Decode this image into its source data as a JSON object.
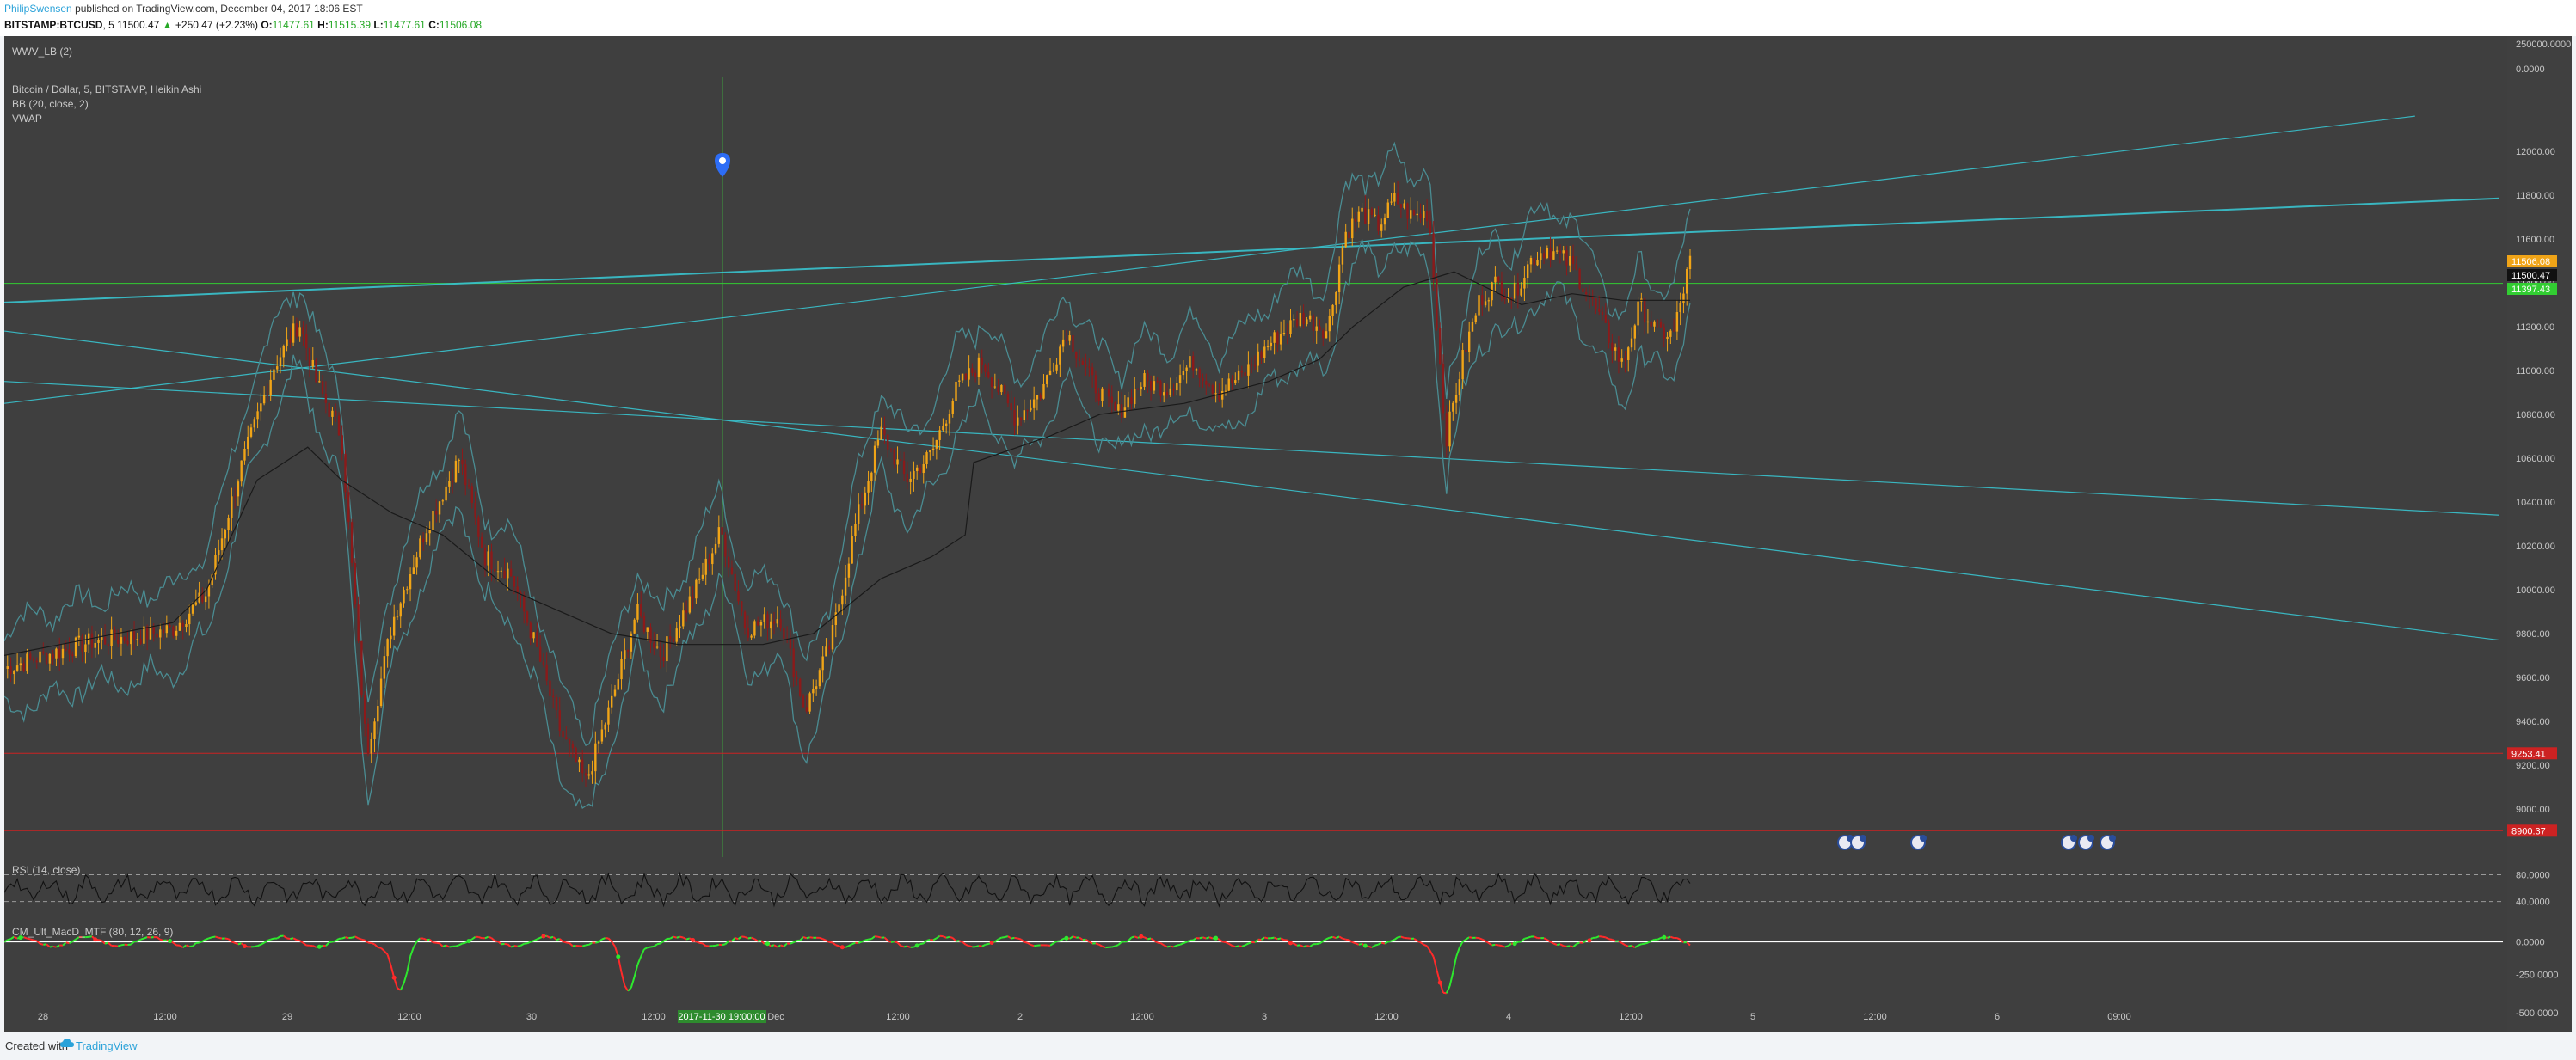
{
  "header": {
    "author": "PhilipSwensen",
    "published": "published on TradingView.com, December 04, 2017 18:06 EST",
    "symbol": "BITSTAMP:BTCUSD",
    "interval": "5",
    "last": "11500.47",
    "change_arrow": "▲",
    "change": "+250.47 (+2.23%)",
    "o_label": "O:",
    "o_value": "11477.61",
    "h_label": "H:",
    "h_value": "11515.39",
    "l_label": "L:",
    "l_value": "11477.61",
    "c_label": "C:",
    "c_value": "11506.08"
  },
  "footer": {
    "created_with": "Created with",
    "brand": "TradingView",
    "brand_icon": "tradingview-cloud-icon"
  },
  "colors": {
    "panel_bg": "#3f3f3f",
    "candle_up": "#f0a417",
    "candle_down": "#8b1a1a",
    "bands": "#4a8c92",
    "vwap": "#1a1a1a",
    "trendline": "#39c3cf",
    "hline_green": "#32cd32",
    "hline_red": "#cc2222"
  },
  "chart_data": [
    {
      "type": "candlestick",
      "legend": [
        "WWV_LB (2)",
        "Bitcoin / Dollar, 5, BITSTAMP, Heikin Ashi",
        "BB (20, close, 2)",
        "VWAP"
      ],
      "x_ticks": [
        "28",
        "12:00",
        "29",
        "12:00",
        "30",
        "12:00",
        "Dec",
        "12:00",
        "2",
        "12:00",
        "3",
        "12:00",
        "4",
        "12:00",
        "5",
        "12:00",
        "6",
        "09:00"
      ],
      "crosshair_date_label": "2017-11-30 19:00:00",
      "y_ticks": [
        9000,
        9200,
        9400,
        9600,
        9800,
        10000,
        10200,
        10400,
        10600,
        10800,
        11000,
        11200,
        11400,
        11600,
        11800,
        12000
      ],
      "y_tick_labels": [
        "9000.00",
        "9200.00",
        "9400.00",
        "9600.00",
        "9800.00",
        "10000.00",
        "10200.00",
        "10400.00",
        "10600.00",
        "10800.00",
        "11000.00",
        "11200.00",
        "11400.00",
        "11600.00",
        "11800.00",
        "12000.00"
      ],
      "ylim": [
        8780,
        12290
      ],
      "volume_axis_labels": [
        "250000.0000",
        "0.0000"
      ],
      "price_markers": [
        {
          "label": "11506.08",
          "value": 11506.08,
          "color": "#f0a417"
        },
        {
          "label": "11500.47",
          "value": 11500.47,
          "color": "#111111"
        },
        {
          "label": "11397.43",
          "value": 11397.43,
          "color": "#32cd32"
        },
        {
          "label": "9253.41",
          "value": 9253.41,
          "color": "#cc2222"
        },
        {
          "label": "8900.37",
          "value": 8900.37,
          "color": "#cc2222"
        }
      ],
      "horizontal_lines": [
        {
          "value": 11397.43,
          "color": "#32cd32"
        },
        {
          "value": 9253.41,
          "color": "#cc2222"
        },
        {
          "value": 8900.37,
          "color": "#cc2222"
        }
      ],
      "close_path": [
        [
          0,
          9640
        ],
        [
          0.02,
          9690
        ],
        [
          0.05,
          9760
        ],
        [
          0.08,
          9790
        ],
        [
          0.1,
          9820
        ],
        [
          0.12,
          9980
        ],
        [
          0.14,
          10550
        ],
        [
          0.16,
          11020
        ],
        [
          0.175,
          11220
        ],
        [
          0.185,
          10950
        ],
        [
          0.2,
          10700
        ],
        [
          0.215,
          9250
        ],
        [
          0.23,
          9850
        ],
        [
          0.25,
          10280
        ],
        [
          0.27,
          10600
        ],
        [
          0.285,
          10150
        ],
        [
          0.3,
          10080
        ],
        [
          0.315,
          9750
        ],
        [
          0.33,
          9350
        ],
        [
          0.345,
          9120
        ],
        [
          0.36,
          9480
        ],
        [
          0.375,
          9900
        ],
        [
          0.39,
          9700
        ],
        [
          0.41,
          10000
        ],
        [
          0.425,
          10270
        ],
        [
          0.44,
          9820
        ],
        [
          0.46,
          9880
        ],
        [
          0.475,
          9450
        ],
        [
          0.49,
          9750
        ],
        [
          0.505,
          10300
        ],
        [
          0.52,
          10720
        ],
        [
          0.535,
          10500
        ],
        [
          0.55,
          10620
        ],
        [
          0.565,
          10920
        ],
        [
          0.58,
          11040
        ],
        [
          0.6,
          10780
        ],
        [
          0.615,
          10900
        ],
        [
          0.63,
          11180
        ],
        [
          0.645,
          10950
        ],
        [
          0.66,
          10800
        ],
        [
          0.675,
          10950
        ],
        [
          0.69,
          10920
        ],
        [
          0.705,
          11040
        ],
        [
          0.72,
          10900
        ],
        [
          0.735,
          10980
        ],
        [
          0.75,
          11120
        ],
        [
          0.77,
          11250
        ],
        [
          0.785,
          11180
        ],
        [
          0.795,
          11620
        ],
        [
          0.805,
          11720
        ],
        [
          0.815,
          11660
        ],
        [
          0.825,
          11780
        ],
        [
          0.835,
          11700
        ],
        [
          0.845,
          11720
        ],
        [
          0.855,
          10680
        ],
        [
          0.865,
          11050
        ],
        [
          0.875,
          11320
        ],
        [
          0.885,
          11400
        ],
        [
          0.895,
          11340
        ],
        [
          0.905,
          11500
        ],
        [
          0.915,
          11560
        ],
        [
          0.93,
          11480
        ],
        [
          0.94,
          11340
        ],
        [
          0.95,
          11180
        ],
        [
          0.96,
          11020
        ],
        [
          0.97,
          11300
        ],
        [
          0.98,
          11180
        ],
        [
          0.99,
          11160
        ],
        [
          1.0,
          11500
        ]
      ],
      "band_width": 180,
      "vwap_path": [
        [
          0,
          9700
        ],
        [
          0.1,
          9850
        ],
        [
          0.12,
          10000
        ],
        [
          0.15,
          10500
        ],
        [
          0.18,
          10650
        ],
        [
          0.2,
          10500
        ],
        [
          0.23,
          10350
        ],
        [
          0.26,
          10250
        ],
        [
          0.3,
          10000
        ],
        [
          0.33,
          9900
        ],
        [
          0.36,
          9800
        ],
        [
          0.4,
          9750
        ],
        [
          0.45,
          9750
        ],
        [
          0.48,
          9800
        ],
        [
          0.52,
          10050
        ],
        [
          0.55,
          10150
        ],
        [
          0.57,
          10250
        ],
        [
          0.575,
          10580
        ],
        [
          0.62,
          10700
        ],
        [
          0.65,
          10800
        ],
        [
          0.7,
          10850
        ],
        [
          0.75,
          10950
        ],
        [
          0.78,
          11050
        ],
        [
          0.8,
          11200
        ],
        [
          0.83,
          11380
        ],
        [
          0.86,
          11450
        ],
        [
          0.9,
          11300
        ],
        [
          0.93,
          11350
        ],
        [
          0.96,
          11320
        ],
        [
          1.0,
          11320
        ]
      ],
      "trendlines": [
        {
          "from": [
            0,
            11310
          ],
          "to": [
            1.48,
            11785
          ],
          "width": 2,
          "color": "#39c3cf"
        },
        {
          "from": [
            0,
            10950
          ],
          "to": [
            1.48,
            10340
          ],
          "width": 1.2,
          "color": "#39c3cf"
        },
        {
          "from": [
            0,
            11180
          ],
          "to": [
            1.48,
            9770
          ],
          "width": 1.2,
          "color": "#39c3cf"
        },
        {
          "from": [
            0,
            10850
          ],
          "to": [
            1.43,
            12160
          ],
          "width": 1.2,
          "color": "#39c3cf"
        }
      ],
      "event_markers": [
        "2 2",
        "4",
        "5 5 4"
      ]
    },
    {
      "type": "line",
      "title": "RSI (14, close)",
      "y_ticks": [
        80,
        40
      ],
      "y_tick_labels": [
        "80.0000",
        "40.0000"
      ],
      "ylim": [
        10,
        100
      ]
    },
    {
      "type": "line",
      "title": "CM_Ult_MacD_MTF (80, 12, 26, 9)",
      "y_ticks": [
        0,
        -250,
        -500
      ],
      "y_tick_labels": [
        "0.0000",
        "-250.0000",
        "-500.0000"
      ],
      "ylim": [
        -500,
        120
      ]
    }
  ]
}
